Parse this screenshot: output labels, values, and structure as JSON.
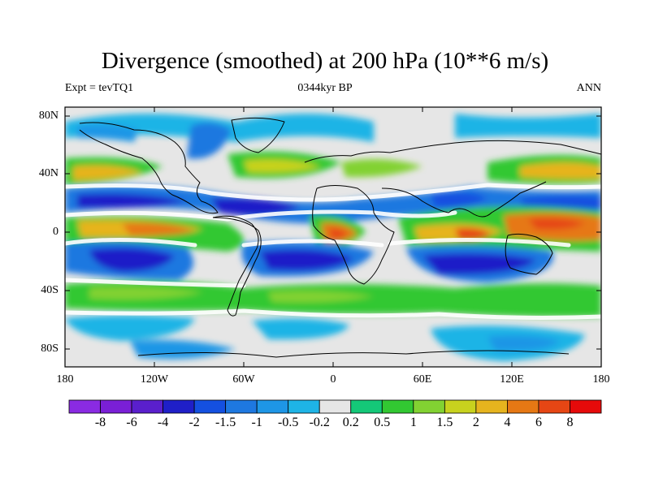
{
  "title": "Divergence (smoothed) at 200 hPa (10**6 m/s)",
  "subtitle_left": "Expt = tevTQ1",
  "subtitle_center": "0344kyr BP",
  "subtitle_right": "ANN",
  "lat_labels": [
    "80N",
    "40N",
    "0",
    "40S",
    "80S"
  ],
  "lon_labels": [
    "180",
    "120W",
    "60W",
    "0",
    "60E",
    "120E",
    "180"
  ],
  "colorbar": {
    "labels": [
      "-8",
      "-6",
      "-4",
      "-2",
      "-1.5",
      "-1",
      "-0.5",
      "-0.2",
      "0.2",
      "0.5",
      "1",
      "1.5",
      "2",
      "4",
      "6",
      "8"
    ],
    "colors": [
      "#8a2be2",
      "#7a1fd6",
      "#5a1fcc",
      "#1f1fc8",
      "#1450e0",
      "#1e78e0",
      "#1e96e6",
      "#1eb4e6",
      "#e6e6e6",
      "#14c878",
      "#32c832",
      "#82d232",
      "#c8d21e",
      "#e6b41e",
      "#e67814",
      "#e64614",
      "#e60a0a"
    ]
  },
  "colors": {
    "land_outline": "#000000",
    "neutral": "#e6e6e6"
  }
}
